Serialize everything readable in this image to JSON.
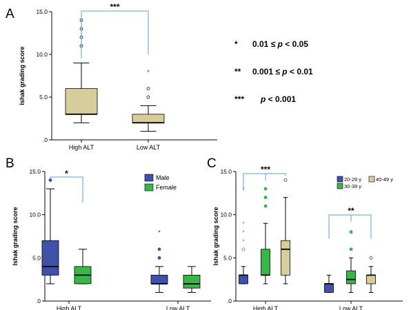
{
  "colors": {
    "overall": "#d7cc9c",
    "male": "#3f51a8",
    "female": "#39b54a",
    "age20_29": "#3f51a8",
    "age30_39": "#39b54a",
    "age40_49": "#d7cc9c",
    "bracket": "#5b9bd5"
  },
  "significance_key": [
    {
      "symbol": "*",
      "range": "0.01 ≤  ",
      "p": "p",
      "cond": " < 0.05"
    },
    {
      "symbol": "**",
      "range": "0.001 ≤ ",
      "p": "p",
      "cond": " < 0.01"
    },
    {
      "symbol": "***",
      "range": "",
      "p": "p",
      "cond": " < 0.001"
    }
  ],
  "chart_data": [
    {
      "type": "box",
      "panel": "A",
      "ylabel": "Ishak grading score",
      "ylim": [
        0,
        15
      ],
      "yticks": [
        ".0",
        "5.0",
        "10.0",
        "15.0"
      ],
      "categories": [
        "High ALT",
        "Low ALT"
      ],
      "series": [
        {
          "color": "overall",
          "boxes": [
            {
              "min": 2,
              "q1": 3,
              "median": 3,
              "q3": 6,
              "max": 9,
              "outliers": [
                11,
                12,
                13,
                14
              ],
              "extremes": []
            },
            {
              "min": 1,
              "q1": 2,
              "median": 2,
              "q3": 3,
              "max": 4,
              "outliers": [
                5,
                6
              ],
              "extremes": [
                8
              ]
            }
          ]
        }
      ],
      "significance": [
        {
          "from": 0,
          "to": 1,
          "label": "***"
        }
      ]
    },
    {
      "type": "box",
      "panel": "B",
      "ylabel": "Ishak grading score",
      "ylim": [
        0,
        15
      ],
      "yticks": [
        ".0",
        "5.0",
        "10.0",
        "15.0"
      ],
      "categories": [
        "High ALT",
        "Low ALT"
      ],
      "legend": [
        "Male",
        "Female"
      ],
      "series": [
        {
          "name": "Male",
          "color": "male",
          "boxes": [
            {
              "min": 2,
              "q1": 3,
              "median": 4,
              "q3": 7,
              "max": 13,
              "outliers": [
                14
              ],
              "extremes": []
            },
            {
              "min": 1,
              "q1": 2,
              "median": 2,
              "q3": 3,
              "max": 4,
              "outliers": [
                5,
                6
              ],
              "extremes": [
                8
              ]
            }
          ]
        },
        {
          "name": "Female",
          "color": "female",
          "boxes": [
            {
              "min": 2,
              "q1": 2,
              "median": 3,
              "q3": 4,
              "max": 6,
              "outliers": [],
              "extremes": []
            },
            {
              "min": 1,
              "q1": 1.5,
              "median": 2,
              "q3": 3,
              "max": 4,
              "outliers": [],
              "extremes": []
            }
          ]
        }
      ],
      "significance": [
        {
          "from": 0,
          "to": 1,
          "group": 0,
          "label": "*"
        }
      ]
    },
    {
      "type": "box",
      "panel": "C",
      "ylabel": "Ishak grading score",
      "ylim": [
        0,
        15
      ],
      "yticks": [
        ".0",
        "5.0",
        "10.0",
        "15.0"
      ],
      "categories": [
        "High ALT",
        "Low ALT"
      ],
      "legend": [
        "20-29 y",
        "30-39 y",
        "40-49 y"
      ],
      "series": [
        {
          "name": "20-29 y",
          "color": "age20_29",
          "boxes": [
            {
              "min": 2,
              "q1": 2,
              "median": 3,
              "q3": 3,
              "max": 4,
              "outliers": [
                6
              ],
              "extremes": [
                7,
                8,
                9,
                13
              ]
            },
            {
              "min": 1,
              "q1": 1,
              "median": 2,
              "q3": 2,
              "max": 3,
              "outliers": [],
              "extremes": []
            }
          ]
        },
        {
          "name": "30-39 y",
          "color": "age30_39",
          "boxes": [
            {
              "min": 2,
              "q1": 3,
              "median": 3,
              "q3": 6,
              "max": 9,
              "outliers": [
                11,
                12,
                13
              ],
              "extremes": []
            },
            {
              "min": 1,
              "q1": 2,
              "median": 2.5,
              "q3": 3.5,
              "max": 5,
              "outliers": [
                6,
                8
              ],
              "extremes": []
            }
          ]
        },
        {
          "name": "40-49 y",
          "color": "age40_49",
          "boxes": [
            {
              "min": 2,
              "q1": 3,
              "median": 6,
              "q3": 7,
              "max": 12,
              "outliers": [
                14
              ],
              "extremes": []
            },
            {
              "min": 1,
              "q1": 2,
              "median": 3,
              "q3": 3,
              "max": 4,
              "outliers": [
                5
              ],
              "extremes": []
            }
          ]
        }
      ],
      "significance": [
        {
          "category": 0,
          "label": "***"
        },
        {
          "category": 1,
          "label": "**"
        }
      ]
    }
  ]
}
